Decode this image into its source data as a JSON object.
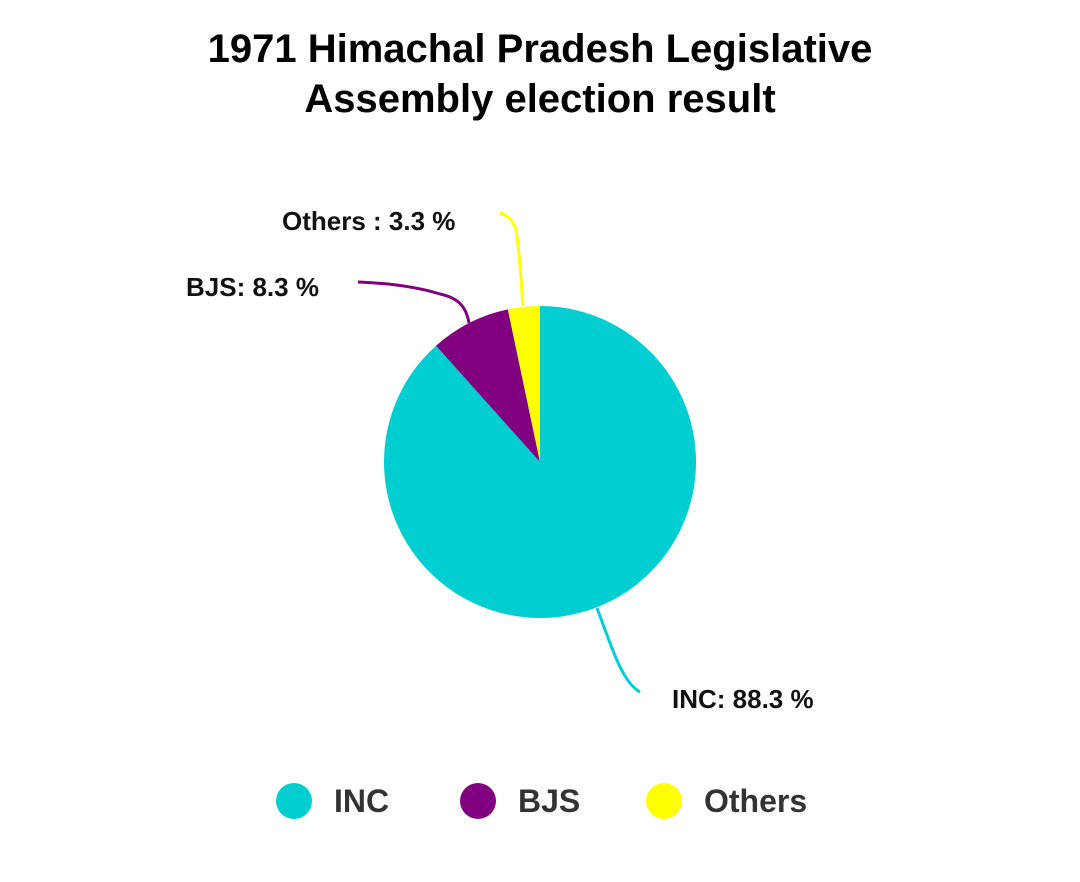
{
  "chart_data": {
    "type": "pie",
    "title_lines": [
      "1971 Himachal Pradesh Legislative",
      "Assembly election result"
    ],
    "slices": [
      {
        "name": "INC",
        "value": 88.3,
        "label": "INC: 88.3 %",
        "color": "#00CED1"
      },
      {
        "name": "BJS",
        "value": 8.3,
        "label": "BJS: 8.3 %",
        "color": "#800080"
      },
      {
        "name": "Others",
        "value": 3.3,
        "label": "Others : 3.3 %",
        "color": "#FFFF00"
      }
    ],
    "start_angle": "12 o'clock",
    "direction": "clockwise",
    "legend_position": "bottom"
  },
  "legend": {
    "items": [
      {
        "name": "INC",
        "color": "#00CED1"
      },
      {
        "name": "BJS",
        "color": "#800080"
      },
      {
        "name": "Others",
        "color": "#FFFF00"
      }
    ]
  }
}
